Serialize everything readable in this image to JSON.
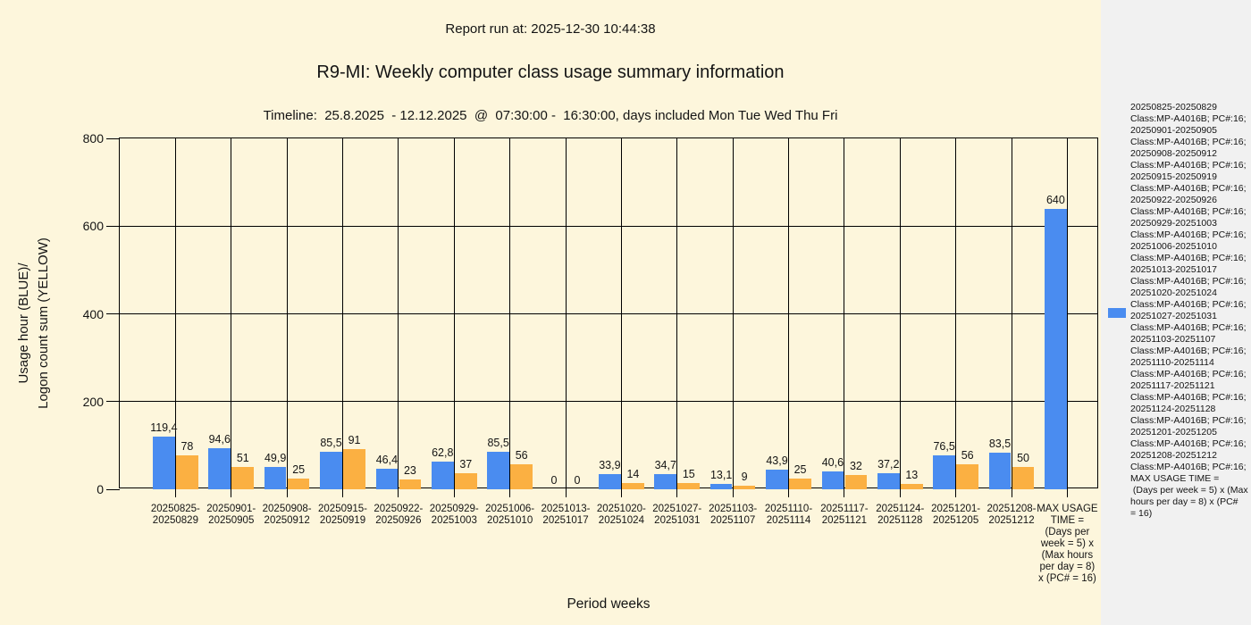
{
  "header": {
    "report_run": "Report run at: 2025-12-30 10:44:38",
    "title": "R9-MI: Weekly computer class usage summary information",
    "timeline": "Timeline:  25.8.2025  - 12.12.2025  @  07:30:00 -  16:30:00, days included Mon Tue Wed Thu Fri"
  },
  "axes": {
    "y_label_line1": "Usage hour (BLUE)/",
    "y_label_line2": "Logon count sum (YELLOW)",
    "x_label": "Period weeks",
    "y_ticks": [
      0,
      200,
      400,
      600,
      800
    ]
  },
  "colors": {
    "background": "#FDF6DC",
    "legend_bg": "#F1F1F1",
    "blue": "#4A8CF0",
    "yellow": "#FBB042",
    "grid": "#000000"
  },
  "chart_data": {
    "type": "bar",
    "title": "R9-MI: Weekly computer class usage summary information",
    "xlabel": "Period weeks",
    "ylabel": "Usage hour (BLUE)/ Logon count sum (YELLOW)",
    "ylim": [
      0,
      800
    ],
    "grid": true,
    "legend_position": "right",
    "categories": [
      "20250825-20250829",
      "20250901-20250905",
      "20250908-20250912",
      "20250915-20250919",
      "20250922-20250926",
      "20250929-20251003",
      "20251006-20251010",
      "20251013-20251017",
      "20251020-20251024",
      "20251027-20251031",
      "20251103-20251107",
      "20251110-20251114",
      "20251117-20251121",
      "20251124-20251128",
      "20251201-20251205",
      "20251208-20251212",
      "MAX USAGE TIME = (Days per week = 5) x (Max hours per day = 8) x (PC# = 16)"
    ],
    "tick_label_lines": [
      [
        "20250825-",
        "20250829"
      ],
      [
        "20250901-",
        "20250905"
      ],
      [
        "20250908-",
        "20250912"
      ],
      [
        "20250915-",
        "20250919"
      ],
      [
        "20250922-",
        "20250926"
      ],
      [
        "20250929-",
        "20251003"
      ],
      [
        "20251006-",
        "20251010"
      ],
      [
        "20251013-",
        "20251017"
      ],
      [
        "20251020-",
        "20251024"
      ],
      [
        "20251027-",
        "20251031"
      ],
      [
        "20251103-",
        "20251107"
      ],
      [
        "20251110-",
        "20251114"
      ],
      [
        "20251117-",
        "20251121"
      ],
      [
        "20251124-",
        "20251128"
      ],
      [
        "20251201-",
        "20251205"
      ],
      [
        "20251208-",
        "20251212"
      ],
      [
        "MAX USAGE",
        "TIME =",
        "(Days per",
        "week = 5) x",
        "(Max hours",
        "per day = 8)",
        "x (PC# = 16)"
      ]
    ],
    "series": [
      {
        "name": "Usage hour",
        "color": "#4A8CF0",
        "values": [
          119.4,
          94.6,
          49.9,
          85.5,
          46.4,
          62.8,
          85.5,
          0,
          33.9,
          34.7,
          13.1,
          43.9,
          40.6,
          37.2,
          76.5,
          83.5,
          640
        ],
        "labels": [
          "119,4",
          "94,6",
          "49,9",
          "85,5",
          "46,4",
          "62,8",
          "85,5",
          "0",
          "33,9",
          "34,7",
          "13,1",
          "43,9",
          "40,6",
          "37,2",
          "76,5",
          "83,5",
          "640"
        ]
      },
      {
        "name": "Logon count sum",
        "color": "#FBB042",
        "values": [
          78,
          51,
          25,
          91,
          23,
          37,
          56,
          0,
          14,
          15,
          9,
          25,
          32,
          13,
          56,
          50,
          null
        ],
        "labels": [
          "78",
          "51",
          "25",
          "91",
          "23",
          "37",
          "56",
          "0",
          "14",
          "15",
          "9",
          "25",
          "32",
          "13",
          "56",
          "50",
          ""
        ]
      }
    ]
  },
  "legend": {
    "lines": [
      "20250825-20250829",
      "Class:MP-A4016B; PC#:16;",
      "20250901-20250905",
      "Class:MP-A4016B; PC#:16;",
      "20250908-20250912",
      "Class:MP-A4016B; PC#:16;",
      "20250915-20250919",
      "Class:MP-A4016B; PC#:16;",
      "20250922-20250926",
      "Class:MP-A4016B; PC#:16;",
      "20250929-20251003",
      "Class:MP-A4016B; PC#:16;",
      "20251006-20251010",
      "Class:MP-A4016B; PC#:16;",
      "20251013-20251017",
      "Class:MP-A4016B; PC#:16;",
      "20251020-20251024",
      "Class:MP-A4016B; PC#:16;",
      "20251027-20251031",
      "Class:MP-A4016B; PC#:16;",
      "20251103-20251107",
      "Class:MP-A4016B; PC#:16;",
      "20251110-20251114",
      "Class:MP-A4016B; PC#:16;",
      "20251117-20251121",
      "Class:MP-A4016B; PC#:16;",
      "20251124-20251128",
      "Class:MP-A4016B; PC#:16;",
      "20251201-20251205",
      "Class:MP-A4016B; PC#:16;",
      "20251208-20251212",
      "Class:MP-A4016B; PC#:16;",
      "MAX USAGE TIME =",
      " (Days per week = 5) x (Max",
      "hours per day = 8) x (PC#",
      "= 16)"
    ]
  }
}
